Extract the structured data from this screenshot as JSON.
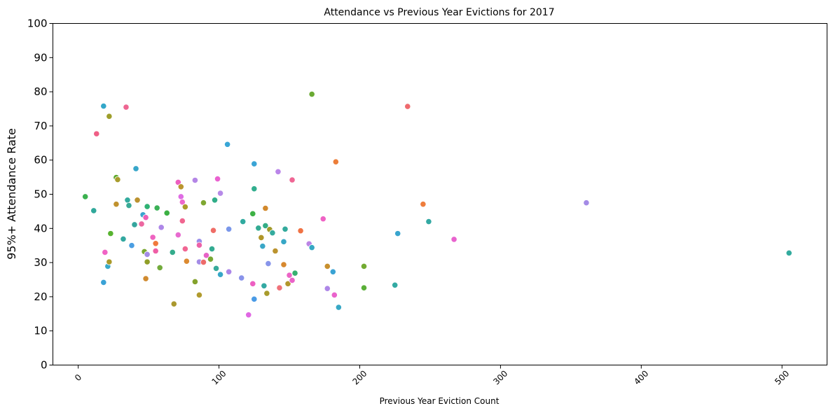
{
  "chart_data": {
    "type": "scatter",
    "title": "Attendance vs Previous Year Evictions for 2017",
    "xlabel": "Previous Year Eviction Count",
    "ylabel": "95%+ Attendance Rate",
    "xlim": [
      -18,
      532
    ],
    "ylim": [
      0,
      100
    ],
    "xticks": [
      0,
      100,
      200,
      300,
      400,
      500
    ],
    "yticks": [
      0,
      10,
      20,
      30,
      40,
      50,
      60,
      70,
      80,
      90,
      100
    ],
    "grid": false,
    "legend": "none",
    "points": [
      {
        "x": 5,
        "y": 49.3,
        "color": "#3bb14f"
      },
      {
        "x": 11,
        "y": 45.2,
        "color": "#30a89a"
      },
      {
        "x": 13,
        "y": 67.7,
        "color": "#ef5f86"
      },
      {
        "x": 18,
        "y": 75.8,
        "color": "#33a7c9"
      },
      {
        "x": 18,
        "y": 24.2,
        "color": "#3aa2d6"
      },
      {
        "x": 19,
        "y": 33.0,
        "color": "#f063c5"
      },
      {
        "x": 21,
        "y": 28.9,
        "color": "#38aaca"
      },
      {
        "x": 22,
        "y": 30.2,
        "color": "#aa9a2a"
      },
      {
        "x": 22,
        "y": 72.8,
        "color": "#9e9e2a"
      },
      {
        "x": 23,
        "y": 38.5,
        "color": "#57b32f"
      },
      {
        "x": 27,
        "y": 47.1,
        "color": "#c0922e"
      },
      {
        "x": 27,
        "y": 54.9,
        "color": "#5da92b"
      },
      {
        "x": 28,
        "y": 54.3,
        "color": "#a89c2d"
      },
      {
        "x": 32,
        "y": 36.9,
        "color": "#33a8a0"
      },
      {
        "x": 34,
        "y": 75.5,
        "color": "#ee6692"
      },
      {
        "x": 35,
        "y": 48.3,
        "color": "#33ab9e"
      },
      {
        "x": 36,
        "y": 46.7,
        "color": "#39aa96"
      },
      {
        "x": 38,
        "y": 35.0,
        "color": "#4b9ee2"
      },
      {
        "x": 40,
        "y": 41.1,
        "color": "#35a59e"
      },
      {
        "x": 41,
        "y": 57.5,
        "color": "#37a6c9"
      },
      {
        "x": 42,
        "y": 48.3,
        "color": "#bb9230"
      },
      {
        "x": 45,
        "y": 41.3,
        "color": "#ec67a0"
      },
      {
        "x": 46,
        "y": 44.0,
        "color": "#3aa3ce"
      },
      {
        "x": 47,
        "y": 33.2,
        "color": "#7ba833"
      },
      {
        "x": 48,
        "y": 25.3,
        "color": "#d08a2f"
      },
      {
        "x": 48,
        "y": 43.2,
        "color": "#eb60b8"
      },
      {
        "x": 49,
        "y": 30.2,
        "color": "#909e27"
      },
      {
        "x": 49,
        "y": 32.4,
        "color": "#a38be6"
      },
      {
        "x": 49,
        "y": 46.4,
        "color": "#2fb273"
      },
      {
        "x": 53,
        "y": 37.4,
        "color": "#ee63c0"
      },
      {
        "x": 55,
        "y": 35.6,
        "color": "#f0793c"
      },
      {
        "x": 55,
        "y": 33.4,
        "color": "#ef5ea6"
      },
      {
        "x": 56,
        "y": 46.0,
        "color": "#3cb157"
      },
      {
        "x": 58,
        "y": 28.5,
        "color": "#73ab3c"
      },
      {
        "x": 59,
        "y": 40.3,
        "color": "#ae87e8"
      },
      {
        "x": 63,
        "y": 44.5,
        "color": "#3cb043"
      },
      {
        "x": 67,
        "y": 33.0,
        "color": "#34ac8c"
      },
      {
        "x": 68,
        "y": 17.9,
        "color": "#aa982e"
      },
      {
        "x": 71,
        "y": 53.5,
        "color": "#ec5fc0"
      },
      {
        "x": 71,
        "y": 38.1,
        "color": "#e86bd0"
      },
      {
        "x": 73,
        "y": 52.2,
        "color": "#bb9530"
      },
      {
        "x": 73,
        "y": 49.3,
        "color": "#df6ce4"
      },
      {
        "x": 74,
        "y": 47.7,
        "color": "#ed68cc"
      },
      {
        "x": 74,
        "y": 42.2,
        "color": "#f06690"
      },
      {
        "x": 76,
        "y": 46.3,
        "color": "#ab9c2c"
      },
      {
        "x": 76,
        "y": 34.0,
        "color": "#f16693"
      },
      {
        "x": 77,
        "y": 30.4,
        "color": "#dc8a30"
      },
      {
        "x": 83,
        "y": 54.1,
        "color": "#b486e6"
      },
      {
        "x": 83,
        "y": 24.4,
        "color": "#84a22c"
      },
      {
        "x": 86,
        "y": 36.2,
        "color": "#9b8fea"
      },
      {
        "x": 86,
        "y": 30.2,
        "color": "#a48ce6"
      },
      {
        "x": 86,
        "y": 35.1,
        "color": "#ec62a8"
      },
      {
        "x": 86,
        "y": 20.5,
        "color": "#b19b2e"
      },
      {
        "x": 89,
        "y": 30.1,
        "color": "#ed6b6a"
      },
      {
        "x": 89,
        "y": 47.5,
        "color": "#7fa732"
      },
      {
        "x": 91,
        "y": 32.1,
        "color": "#e763c6"
      },
      {
        "x": 94,
        "y": 31.0,
        "color": "#79a834"
      },
      {
        "x": 95,
        "y": 34.0,
        "color": "#33ab91"
      },
      {
        "x": 96,
        "y": 39.4,
        "color": "#ef6d67"
      },
      {
        "x": 97,
        "y": 48.3,
        "color": "#30ad88"
      },
      {
        "x": 98,
        "y": 28.3,
        "color": "#36aa9b"
      },
      {
        "x": 99,
        "y": 54.5,
        "color": "#ea62d0"
      },
      {
        "x": 101,
        "y": 26.5,
        "color": "#36a7c7"
      },
      {
        "x": 101,
        "y": 50.3,
        "color": "#b68ae8"
      },
      {
        "x": 106,
        "y": 64.6,
        "color": "#38a6d6"
      },
      {
        "x": 107,
        "y": 39.8,
        "color": "#7a97ea"
      },
      {
        "x": 107,
        "y": 27.3,
        "color": "#ab86e8"
      },
      {
        "x": 116,
        "y": 25.5,
        "color": "#8993ea"
      },
      {
        "x": 117,
        "y": 42.0,
        "color": "#30aa9f"
      },
      {
        "x": 121,
        "y": 14.7,
        "color": "#e067e3"
      },
      {
        "x": 124,
        "y": 44.3,
        "color": "#3db145"
      },
      {
        "x": 124,
        "y": 23.8,
        "color": "#ed5fc2"
      },
      {
        "x": 125,
        "y": 19.3,
        "color": "#4a9be6"
      },
      {
        "x": 125,
        "y": 58.9,
        "color": "#3aa4d5"
      },
      {
        "x": 125,
        "y": 51.6,
        "color": "#32ae8e"
      },
      {
        "x": 128,
        "y": 40.1,
        "color": "#34ab93"
      },
      {
        "x": 130,
        "y": 37.3,
        "color": "#b09628"
      },
      {
        "x": 131,
        "y": 34.8,
        "color": "#3aa7c7"
      },
      {
        "x": 132,
        "y": 23.2,
        "color": "#33a9a3"
      },
      {
        "x": 133,
        "y": 40.8,
        "color": "#33ad86"
      },
      {
        "x": 133,
        "y": 45.9,
        "color": "#d2892c"
      },
      {
        "x": 134,
        "y": 21.0,
        "color": "#a89b2c"
      },
      {
        "x": 135,
        "y": 29.7,
        "color": "#8895ea"
      },
      {
        "x": 136,
        "y": 39.7,
        "color": "#a09a2a"
      },
      {
        "x": 138,
        "y": 38.7,
        "color": "#34ab9e"
      },
      {
        "x": 140,
        "y": 33.4,
        "color": "#bb932e"
      },
      {
        "x": 142,
        "y": 56.6,
        "color": "#ba85e9"
      },
      {
        "x": 143,
        "y": 22.6,
        "color": "#f0727a"
      },
      {
        "x": 146,
        "y": 36.1,
        "color": "#37a7c6"
      },
      {
        "x": 146,
        "y": 29.4,
        "color": "#d7882e"
      },
      {
        "x": 147,
        "y": 39.8,
        "color": "#33aa9c"
      },
      {
        "x": 149,
        "y": 23.8,
        "color": "#b3972c"
      },
      {
        "x": 150,
        "y": 26.3,
        "color": "#ec64c6"
      },
      {
        "x": 152,
        "y": 54.2,
        "color": "#ef6694"
      },
      {
        "x": 152,
        "y": 24.8,
        "color": "#ea63c8"
      },
      {
        "x": 154,
        "y": 26.9,
        "color": "#37b070"
      },
      {
        "x": 158,
        "y": 39.3,
        "color": "#f07244"
      },
      {
        "x": 164,
        "y": 35.5,
        "color": "#bb85e5"
      },
      {
        "x": 166,
        "y": 79.3,
        "color": "#6aaa33"
      },
      {
        "x": 166,
        "y": 34.4,
        "color": "#36a7c3"
      },
      {
        "x": 174,
        "y": 42.8,
        "color": "#ef63c5"
      },
      {
        "x": 177,
        "y": 28.9,
        "color": "#c8902e"
      },
      {
        "x": 177,
        "y": 22.4,
        "color": "#ae87e8"
      },
      {
        "x": 181,
        "y": 27.3,
        "color": "#3aa3d4"
      },
      {
        "x": 182,
        "y": 20.5,
        "color": "#ea63cc"
      },
      {
        "x": 183,
        "y": 59.5,
        "color": "#ec7e39"
      },
      {
        "x": 185,
        "y": 16.9,
        "color": "#37a8c5"
      },
      {
        "x": 203,
        "y": 28.9,
        "color": "#73ab32"
      },
      {
        "x": 203,
        "y": 22.6,
        "color": "#5aaf38"
      },
      {
        "x": 225,
        "y": 23.4,
        "color": "#33aaa3"
      },
      {
        "x": 227,
        "y": 38.5,
        "color": "#38a5ce"
      },
      {
        "x": 234,
        "y": 75.7,
        "color": "#ef6a6e"
      },
      {
        "x": 245,
        "y": 47.1,
        "color": "#ee7d3c"
      },
      {
        "x": 249,
        "y": 42.0,
        "color": "#33a9a3"
      },
      {
        "x": 267,
        "y": 36.8,
        "color": "#e863ce"
      },
      {
        "x": 361,
        "y": 47.5,
        "color": "#a48be6"
      },
      {
        "x": 505,
        "y": 32.8,
        "color": "#33ab9e"
      }
    ]
  }
}
